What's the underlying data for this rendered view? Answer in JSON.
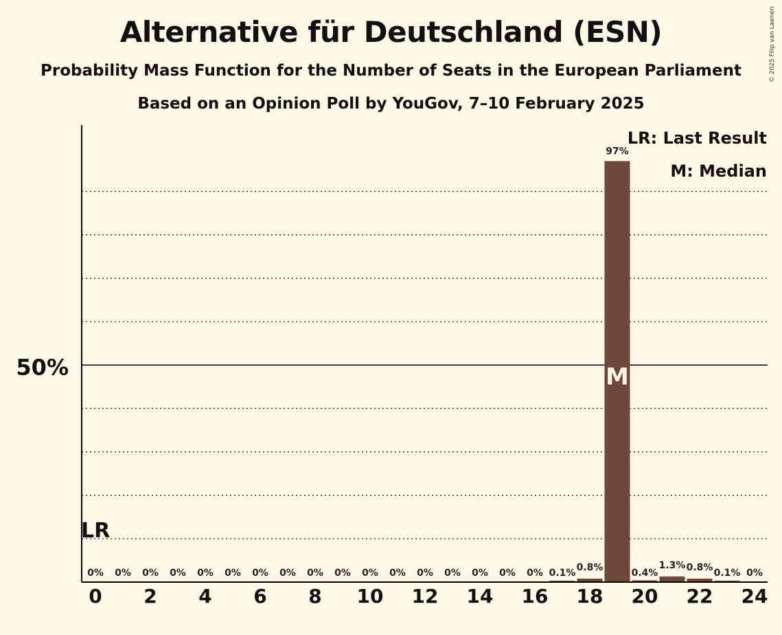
{
  "header": {
    "title": "Alternative für Deutschland (ESN)",
    "subtitle": "Probability Mass Function for the Number of Seats in the European Parliament",
    "subtitle2": "Based on an Opinion Poll by YouGov, 7–10 February 2025",
    "copyright": "© 2025 Filip van Laenen"
  },
  "chart_data": {
    "type": "bar",
    "x": [
      0,
      1,
      2,
      3,
      4,
      5,
      6,
      7,
      8,
      9,
      10,
      11,
      12,
      13,
      14,
      15,
      16,
      17,
      18,
      19,
      20,
      21,
      22,
      23,
      24
    ],
    "values": [
      0,
      0,
      0,
      0,
      0,
      0,
      0,
      0,
      0,
      0,
      0,
      0,
      0,
      0,
      0,
      0,
      0,
      0.1,
      0.8,
      97,
      0.4,
      1.3,
      0.8,
      0.1,
      0
    ],
    "data_labels": [
      "0%",
      "0%",
      "0%",
      "0%",
      "0%",
      "0%",
      "0%",
      "0%",
      "0%",
      "0%",
      "0%",
      "0%",
      "0%",
      "0%",
      "0%",
      "0%",
      "0%",
      "0.1%",
      "0.8%",
      "97%",
      "0.4%",
      "1.3%",
      "0.8%",
      "0.1%",
      "0%"
    ],
    "xtick_labels": [
      "0",
      "2",
      "4",
      "6",
      "8",
      "10",
      "12",
      "14",
      "16",
      "18",
      "20",
      "22",
      "24"
    ],
    "ytick_label": "50%",
    "ylim": [
      0,
      100
    ],
    "median": 19,
    "median_marker": "M",
    "last_result": 0,
    "last_result_marker": "LR",
    "legend": [
      "LR: Last Result",
      "M: Median"
    ],
    "legend_position": "top-right",
    "grid": true,
    "colors": {
      "bar": "#6f463a",
      "background": "#fff8e6",
      "axis": "#000000"
    }
  }
}
